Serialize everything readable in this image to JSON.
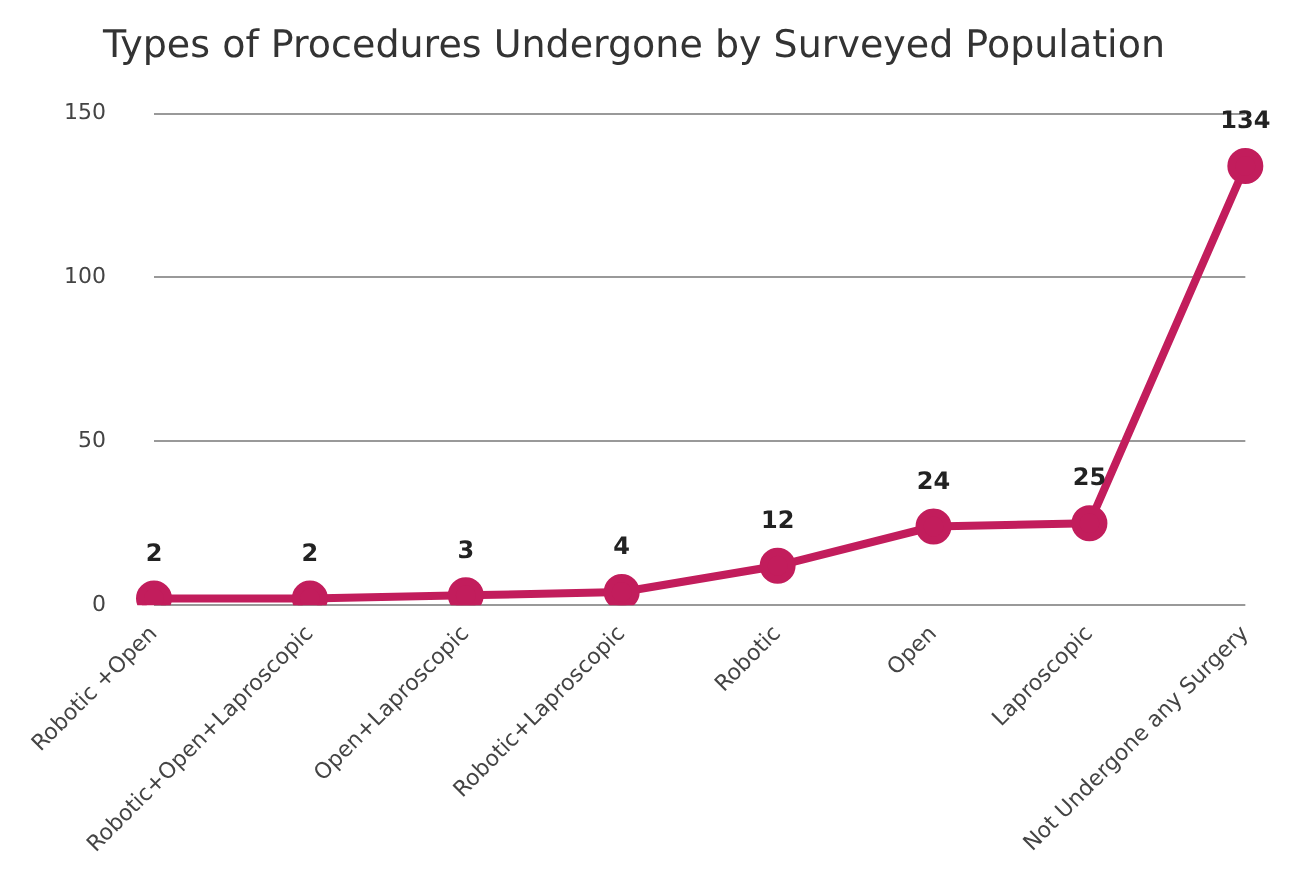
{
  "chart_data": {
    "type": "line",
    "title": "Types of Procedures Undergone by Surveyed Population",
    "categories": [
      "Robotic +Open",
      "Robotic+Open+Laproscopic",
      "Open+Laproscopic",
      "Robotic+Laproscopic",
      "Robotic",
      "Open",
      "Laproscopic",
      "Not Undergone any Surgery"
    ],
    "series": [
      {
        "color": "#c21d5c",
        "values": [
          2,
          2,
          3,
          4,
          12,
          24,
          25,
          134
        ]
      }
    ],
    "ylim": [
      0,
      150
    ],
    "yticks": [
      0,
      50,
      100,
      150
    ],
    "grid": "y",
    "legend": false,
    "marker": "circle",
    "line_style": "solid",
    "data_labels": true
  }
}
